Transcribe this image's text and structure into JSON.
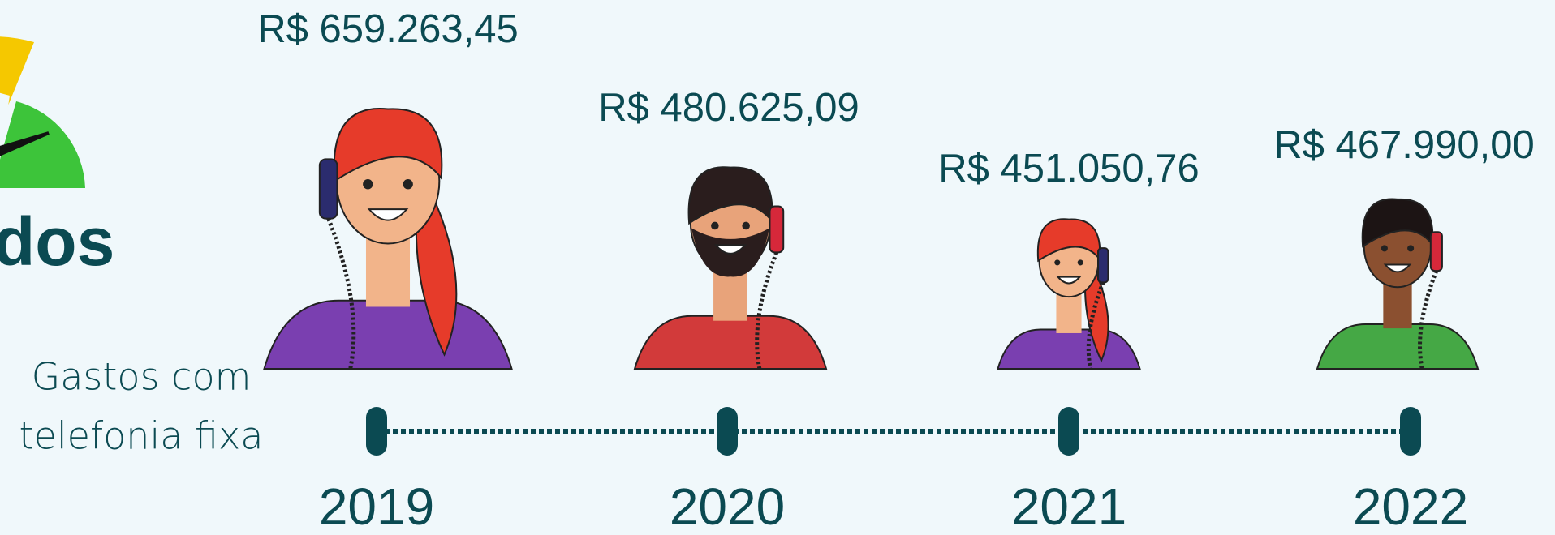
{
  "heading_fragment": "dos",
  "caption": [
    "Gastos com",
    "telefonia fixa"
  ],
  "timeline": [
    {
      "amount": "R$ 659.263,45",
      "year": "2019"
    },
    {
      "amount": "R$ 480.625,09",
      "year": "2020"
    },
    {
      "amount": "R$ 451.050,76",
      "year": "2021"
    },
    {
      "amount": "R$ 467.990,00",
      "year": "2022"
    }
  ]
}
